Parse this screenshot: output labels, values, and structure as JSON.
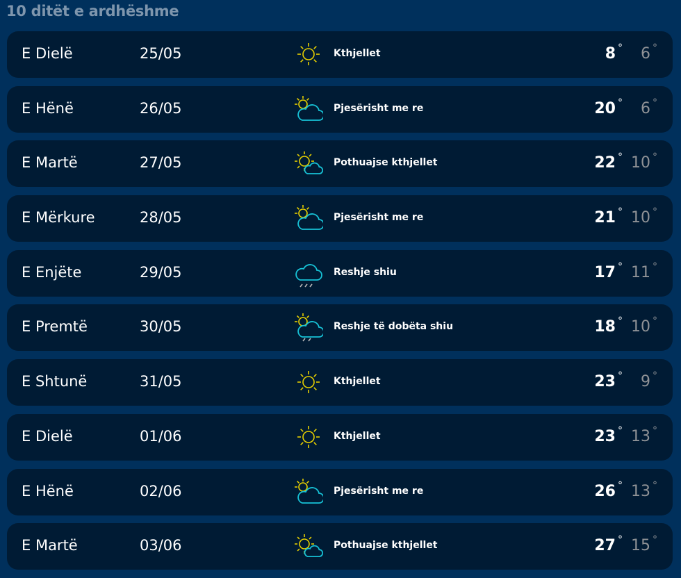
{
  "title": "10 ditët e ardhëshme",
  "degree_symbol": "°",
  "colors": {
    "background": "#00305c",
    "card": "#001b34",
    "sun": "#e6cf00",
    "cloud": "#17c2d6",
    "low_temp": "#8f9296"
  },
  "days": [
    {
      "day": "E Dielë",
      "date": "25/05",
      "icon": "sun-icon",
      "desc": "Kthjellet",
      "high": "8",
      "low": "6"
    },
    {
      "day": "E Hënë",
      "date": "26/05",
      "icon": "partly-cloudy-icon",
      "desc": "Pjesërisht me re",
      "high": "20",
      "low": "6"
    },
    {
      "day": "E Martë",
      "date": "27/05",
      "icon": "mostly-clear-icon",
      "desc": "Pothuajse kthjellet",
      "high": "22",
      "low": "10"
    },
    {
      "day": "E Mërkure",
      "date": "28/05",
      "icon": "partly-cloudy-icon",
      "desc": "Pjesërisht me re",
      "high": "21",
      "low": "10"
    },
    {
      "day": "E Enjëte",
      "date": "29/05",
      "icon": "rain-icon",
      "desc": "Reshje shiu",
      "high": "17",
      "low": "11"
    },
    {
      "day": "E Premtë",
      "date": "30/05",
      "icon": "sun-rain-icon",
      "desc": "Reshje të dobëta shiu",
      "high": "18",
      "low": "10"
    },
    {
      "day": "E Shtunë",
      "date": "31/05",
      "icon": "sun-icon",
      "desc": "Kthjellet",
      "high": "23",
      "low": "9"
    },
    {
      "day": "E Dielë",
      "date": "01/06",
      "icon": "sun-icon",
      "desc": "Kthjellet",
      "high": "23",
      "low": "13"
    },
    {
      "day": "E Hënë",
      "date": "02/06",
      "icon": "partly-cloudy-icon",
      "desc": "Pjesërisht me re",
      "high": "26",
      "low": "13"
    },
    {
      "day": "E Martë",
      "date": "03/06",
      "icon": "mostly-clear-icon",
      "desc": "Pothuajse kthjellet",
      "high": "27",
      "low": "15"
    }
  ]
}
